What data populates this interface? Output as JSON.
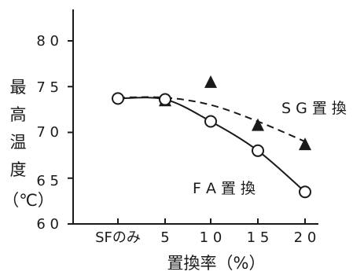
{
  "chart_data": {
    "type": "line",
    "categories": [
      "SFのみ",
      "5",
      "10",
      "15",
      "20"
    ],
    "x_values": [
      0,
      5,
      10,
      15,
      20
    ],
    "ylabel_lines": [
      "最",
      "高",
      "温",
      "度",
      "（℃）"
    ],
    "xlabel": "置換率（%）",
    "ylim": [
      60,
      80
    ],
    "yticks": [
      60,
      65,
      70,
      75,
      80
    ],
    "ytick_labels": [
      "6 0",
      "6 5",
      "7 0",
      "7 5",
      "8 0"
    ],
    "xtick_labels": [
      "SFのみ",
      "5",
      "1 0",
      "1 5",
      "2 0"
    ],
    "grid": false,
    "series": [
      {
        "name": "FA置換",
        "label_text": "F A 置 換",
        "marker": "open-circle",
        "line_style": "solid",
        "color": "#1a1a1a",
        "points": [
          {
            "x": 0,
            "y": 73.7
          },
          {
            "x": 5,
            "y": 73.6
          },
          {
            "x": 10,
            "y": 71.2
          },
          {
            "x": 15,
            "y": 68.0
          },
          {
            "x": 20,
            "y": 63.5
          }
        ]
      },
      {
        "name": "SG置換",
        "label_text": "S G 置 換",
        "marker": "filled-triangle",
        "line_style": "dashed",
        "color": "#1a1a1a",
        "points": [
          {
            "x": 5,
            "y": 73.5
          },
          {
            "x": 10,
            "y": 75.5
          },
          {
            "x": 15,
            "y": 70.8
          },
          {
            "x": 20,
            "y": 68.7
          }
        ],
        "trend": [
          {
            "x": 0,
            "y": 73.8
          },
          {
            "x": 5,
            "y": 73.8
          },
          {
            "x": 10,
            "y": 73.0
          },
          {
            "x": 15,
            "y": 71.2
          },
          {
            "x": 20,
            "y": 69.0
          }
        ]
      }
    ]
  }
}
